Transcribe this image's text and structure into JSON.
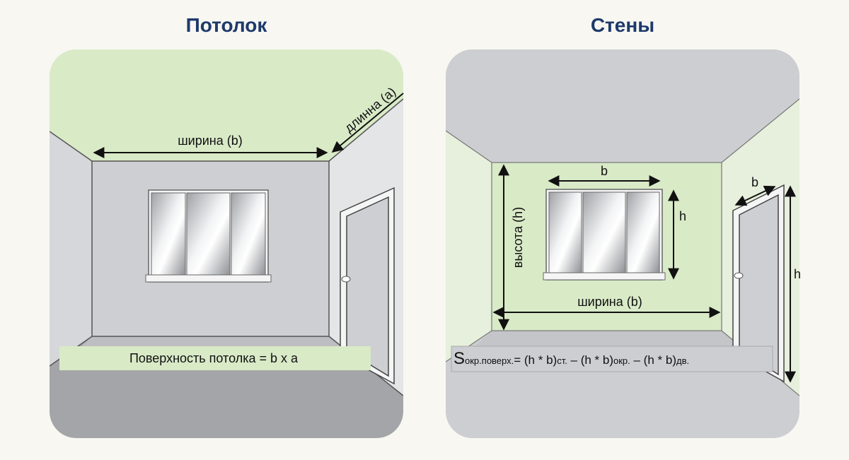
{
  "left_panel": {
    "title": "Потолок",
    "label_width": "ширина (b)",
    "label_length": "длинна (а)",
    "formula": "Поверхность потолка = b x a",
    "highlight_color": "#d9eac7"
  },
  "right_panel": {
    "title": "Стены",
    "label_b_window": "b",
    "label_h_window": "h",
    "label_height": "высота (h)",
    "label_width": "ширина (b)",
    "label_b_door": "b",
    "label_h_door": "h",
    "formula": {
      "s": "S",
      "p1": "окр.поверх.",
      "p2": "= (h * b)",
      "p3": "ст.",
      "p4": " – (h * b)",
      "p5": "окр.",
      "p6": " – (h * b)",
      "p7": "дв."
    },
    "highlight_color": "#d9eac7"
  },
  "colors": {
    "title": "#1e3a6b",
    "ceiling_grey": "#ccced2",
    "floor_grey": "#a4a5a8"
  }
}
